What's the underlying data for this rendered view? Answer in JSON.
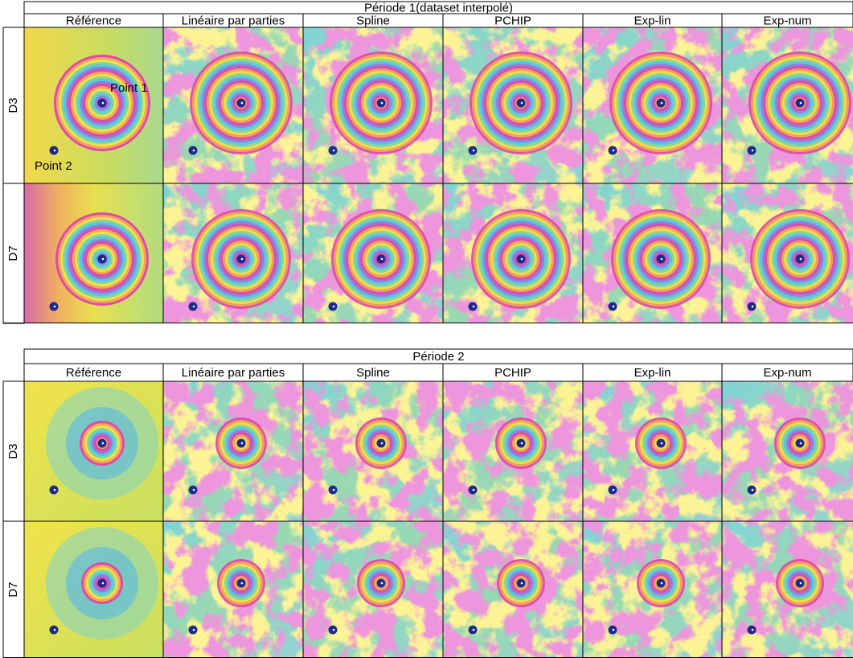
{
  "blocks": [
    {
      "title": "Période 1(dataset interpolé)",
      "columns": [
        "Référence",
        "Linéaire par parties",
        "Spline",
        "PCHIP",
        "Exp-lin",
        "Exp-num"
      ],
      "rows": [
        "D3",
        "D7"
      ]
    },
    {
      "title": "Période 2",
      "columns": [
        "Référence",
        "Linéaire par parties",
        "Spline",
        "PCHIP",
        "Exp-lin",
        "Exp-num"
      ],
      "rows": [
        "D3",
        "D7"
      ]
    }
  ],
  "annotations": [
    "Point 1",
    "Point 2"
  ]
}
